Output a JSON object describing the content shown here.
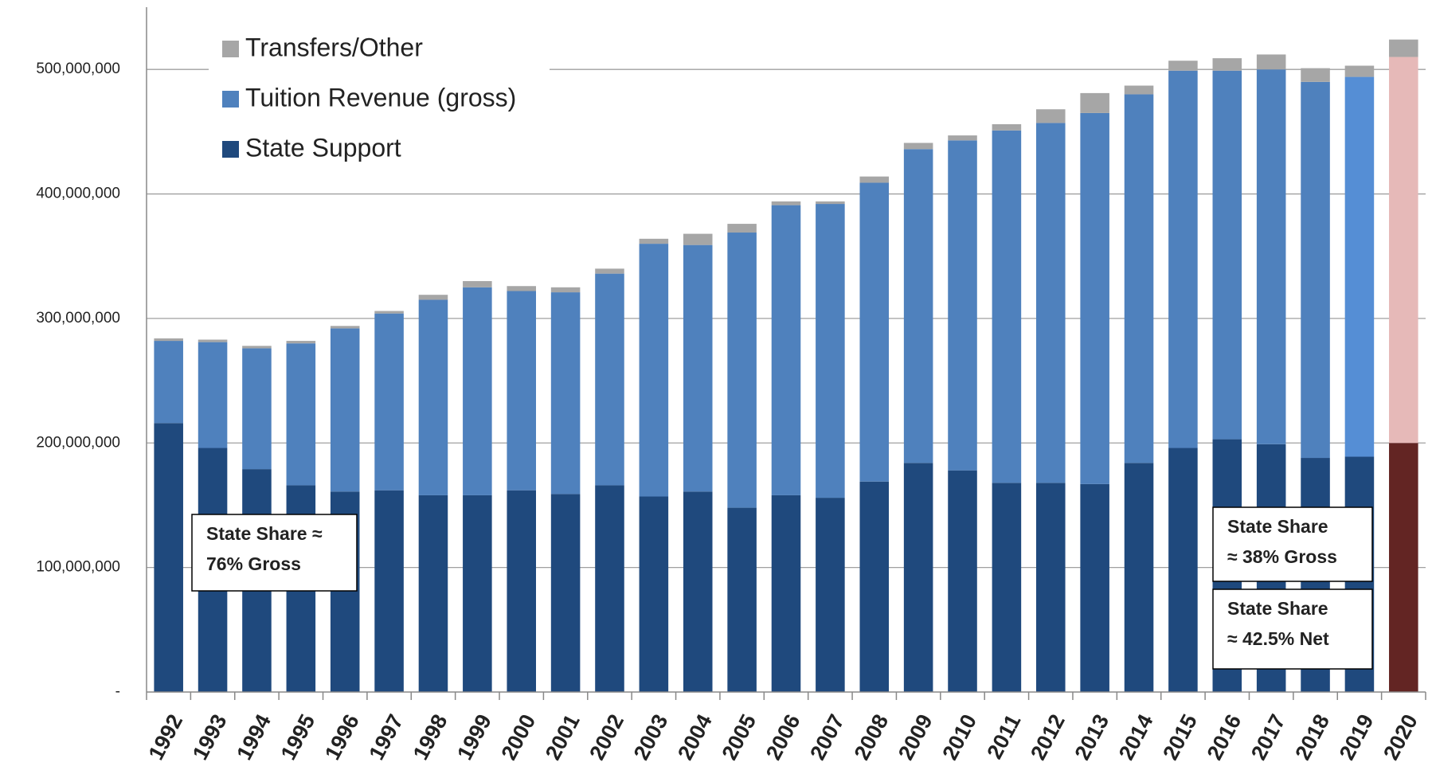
{
  "chart_data": {
    "type": "stacked_bar",
    "categories": [
      "1992",
      "1993",
      "1994",
      "1995",
      "1996",
      "1997",
      "1998",
      "1999",
      "2000",
      "2001",
      "2002",
      "2003",
      "2004",
      "2005",
      "2006",
      "2007",
      "2008",
      "2009",
      "2010",
      "2011",
      "2012",
      "2013",
      "2014",
      "2015",
      "2016",
      "2017",
      "2018",
      "2019",
      "2020"
    ],
    "series": [
      {
        "name": "State Support",
        "color": "#1f497d",
        "point_colors": {
          "28": "#632523"
        },
        "values": [
          216000000,
          196000000,
          179000000,
          166000000,
          161000000,
          162000000,
          158000000,
          158000000,
          162000000,
          159000000,
          166000000,
          157000000,
          161000000,
          148000000,
          158000000,
          156000000,
          169000000,
          184000000,
          178000000,
          168000000,
          168000000,
          167000000,
          184000000,
          196000000,
          203000000,
          199000000,
          188000000,
          189000000,
          200000000
        ]
      },
      {
        "name": "Tuition Revenue (gross)",
        "color": "#4f81bd",
        "point_colors": {
          "27": "#558ed5",
          "28": "#e6b9b8"
        },
        "values": [
          66000000,
          85000000,
          97000000,
          114000000,
          131000000,
          142000000,
          157000000,
          167000000,
          160000000,
          162000000,
          170000000,
          203000000,
          198000000,
          221000000,
          233000000,
          236000000,
          240000000,
          252000000,
          265000000,
          283000000,
          289000000,
          298000000,
          296000000,
          303000000,
          296000000,
          301000000,
          302000000,
          305000000,
          310000000
        ]
      },
      {
        "name": "Transfers/Other",
        "color": "#a6a6a6",
        "values": [
          2000000,
          2000000,
          2000000,
          2000000,
          2000000,
          2000000,
          4000000,
          5000000,
          4000000,
          4000000,
          4000000,
          4000000,
          9000000,
          7000000,
          3000000,
          2000000,
          5000000,
          5000000,
          4000000,
          5000000,
          11000000,
          16000000,
          7000000,
          8000000,
          10000000,
          12000000,
          11000000,
          9000000,
          14000000
        ]
      }
    ],
    "ylim": [
      0,
      550000000
    ],
    "yticks": [
      {
        "value": 0,
        "label": "-"
      },
      {
        "value": 100000000,
        "label": "100,000,000"
      },
      {
        "value": 200000000,
        "label": "200,000,000"
      },
      {
        "value": 300000000,
        "label": "300,000,000"
      },
      {
        "value": 400000000,
        "label": "400,000,000"
      },
      {
        "value": 500000000,
        "label": "500,000,000"
      }
    ],
    "grid": true,
    "legend": "upper left",
    "annotations": [
      {
        "lines": [
          "State Share ≈",
          "76% Gross"
        ]
      },
      {
        "lines": [
          "State Share",
          "≈ 38% Gross"
        ]
      },
      {
        "lines": [
          "State Share",
          "≈ 42.5% Net"
        ]
      }
    ]
  }
}
